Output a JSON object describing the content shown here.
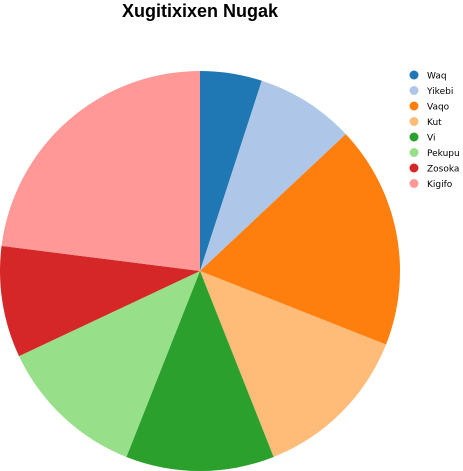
{
  "chart_data": {
    "type": "pie",
    "title": "Xugitixixen Nugak",
    "categories": [
      "Waq",
      "Yikebi",
      "Vaqo",
      "Kut",
      "Vi",
      "Pekupu",
      "Zosoka",
      "Kigifo"
    ],
    "values": [
      5,
      8,
      18,
      13,
      12,
      12,
      9,
      23
    ],
    "colors": [
      "#1f77b4",
      "#aec7e8",
      "#ff7f0e",
      "#ffbb78",
      "#2ca02c",
      "#98df8a",
      "#d62728",
      "#ff9896"
    ],
    "start_angle": "top",
    "direction": "clockwise",
    "legend_position": "top-right"
  }
}
